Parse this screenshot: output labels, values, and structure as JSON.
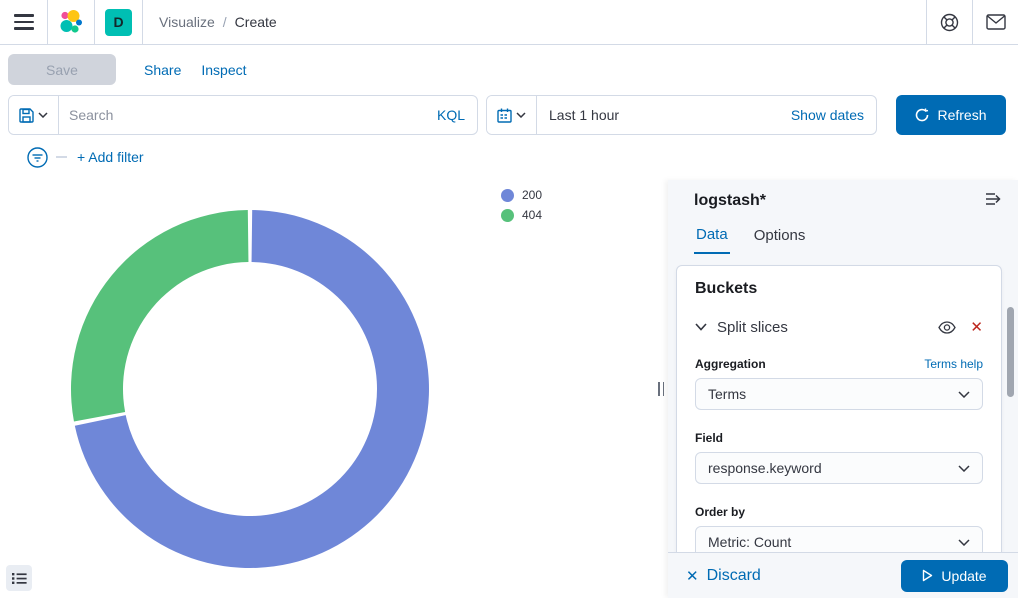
{
  "header": {
    "space_badge": "D",
    "breadcrumbs": {
      "parent": "Visualize",
      "separator": "/",
      "current": "Create"
    }
  },
  "toolbar": {
    "save_label": "Save",
    "share_label": "Share",
    "inspect_label": "Inspect"
  },
  "query_bar": {
    "search_placeholder": "Search",
    "kql_label": "KQL",
    "time_range": "Last 1 hour",
    "show_dates_label": "Show dates",
    "refresh_label": "Refresh"
  },
  "filter_bar": {
    "add_filter_label": "+ Add filter"
  },
  "chart_data": {
    "type": "pie",
    "subtype": "donut",
    "title": "",
    "categories": [
      "200",
      "404"
    ],
    "values": [
      71.9,
      28.1
    ],
    "value_unit": "percent-share",
    "slices": [
      {
        "label": "200",
        "value": 71.9,
        "color": "#6f87d8"
      },
      {
        "label": "404",
        "value": 28.1,
        "color": "#57c17b"
      }
    ],
    "inner_radius_ratio": 0.71,
    "start_angle_deg": 0,
    "direction": "clockwise",
    "legend_position": "top-right"
  },
  "side_panel": {
    "index_pattern": "logstash*",
    "tabs": [
      {
        "label": "Data",
        "active": true
      },
      {
        "label": "Options",
        "active": false
      }
    ],
    "buckets": {
      "title": "Buckets",
      "bucket_label": "Split slices",
      "aggregation": {
        "label": "Aggregation",
        "help_link": "Terms help",
        "value": "Terms"
      },
      "field": {
        "label": "Field",
        "value": "response.keyword"
      },
      "order_by": {
        "label": "Order by",
        "value": "Metric: Count"
      }
    },
    "footer": {
      "discard_label": "Discard",
      "update_label": "Update"
    }
  },
  "colors": {
    "primary": "#006bb4",
    "accent_teal": "#00bfb3",
    "danger": "#bd271e",
    "slice_200": "#6f87d8",
    "slice_404": "#57c17b"
  }
}
